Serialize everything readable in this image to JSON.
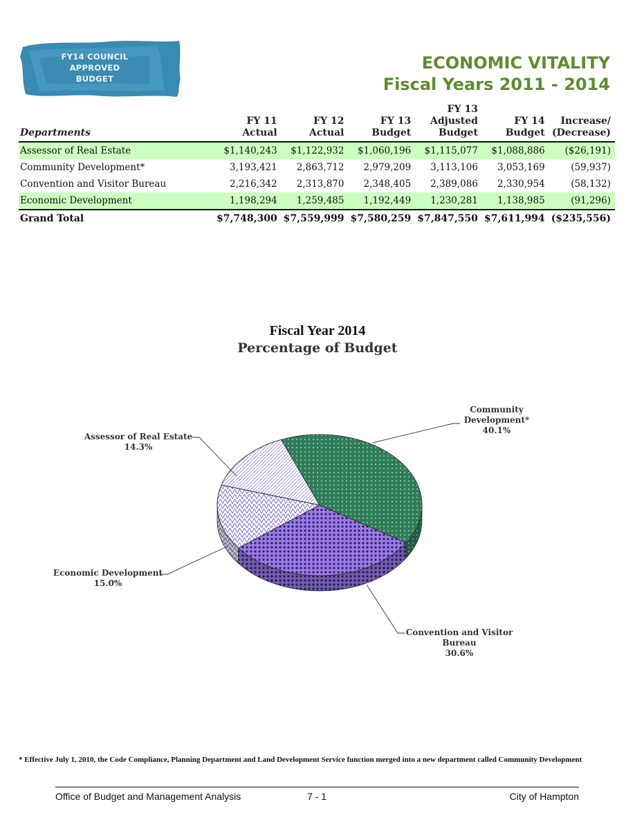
{
  "badge": {
    "lines": [
      "FY14 COUNCIL",
      "APPROVED",
      "BUDGET"
    ]
  },
  "title": {
    "line1": "ECONOMIC VITALITY",
    "line2": "Fiscal Years 2011 - 2014"
  },
  "table": {
    "headers": {
      "departments": "Departments",
      "fy11": [
        "FY 11",
        "Actual"
      ],
      "fy12": [
        "FY 12",
        "Actual"
      ],
      "fy13": [
        "FY 13",
        "Budget"
      ],
      "fy13adj": [
        "FY 13",
        "Adjusted",
        "Budget"
      ],
      "fy14": [
        "FY 14",
        "Budget"
      ],
      "change": [
        "Increase/",
        "(Decrease)"
      ]
    },
    "rows": [
      {
        "name": "Assessor of Real Estate",
        "fy11": "$1,140,243",
        "fy12": "$1,122,932",
        "fy13": "$1,060,196",
        "fy13adj": "$1,115,077",
        "fy14": "$1,088,886",
        "change": "($26,191)"
      },
      {
        "name": "Community Development*",
        "fy11": "3,193,421",
        "fy12": "2,863,712",
        "fy13": "2,979,209",
        "fy13adj": "3,113,106",
        "fy14": "3,053,169",
        "change": "(59,937)"
      },
      {
        "name": "Convention and Visitor Bureau",
        "fy11": "2,216,342",
        "fy12": "2,313,870",
        "fy13": "2,348,405",
        "fy13adj": "2,389,086",
        "fy14": "2,330,954",
        "change": "(58,132)"
      },
      {
        "name": "Economic Development",
        "fy11": "1,198,294",
        "fy12": "1,259,485",
        "fy13": "1,192,449",
        "fy13adj": "1,230,281",
        "fy14": "1,138,985",
        "change": "(91,296)"
      }
    ],
    "total": {
      "name": "Grand Total",
      "fy11": "$7,748,300",
      "fy12": "$7,559,999",
      "fy13": "$7,580,259",
      "fy13adj": "$7,847,550",
      "fy14": "$7,611,994",
      "change": "($235,556)"
    }
  },
  "chart_data": {
    "type": "pie",
    "title": "Fiscal Year 2014",
    "subtitle": "Percentage of Budget",
    "slices": [
      {
        "label": "Community Development*",
        "label_lines": [
          "Community",
          "Development*",
          "40.1%"
        ],
        "value": 40.1,
        "color": "#2f7d5a"
      },
      {
        "label": "Convention and Visitor Bureau",
        "label_lines": [
          "Convention and Visitor",
          "Bureau",
          "30.6%"
        ],
        "value": 30.6,
        "color": "#7a55cc"
      },
      {
        "label": "Economic Development",
        "label_lines": [
          "Economic Development",
          "15.0%"
        ],
        "value": 15.0,
        "color": "#c9c3f0"
      },
      {
        "label": "Assessor of Real Estate",
        "label_lines": [
          "Assessor of Real Estate",
          "14.3%"
        ],
        "value": 14.3,
        "color": "#e6e3f7"
      }
    ]
  },
  "footnote": "* Effective July 1, 2010, the Code Compliance, Planning Department and Land Development Service function merged into a new department called Community Development",
  "footer": {
    "left": "Office of Budget and Management Analysis",
    "center": "7 - 1",
    "right": "City of Hampton"
  }
}
